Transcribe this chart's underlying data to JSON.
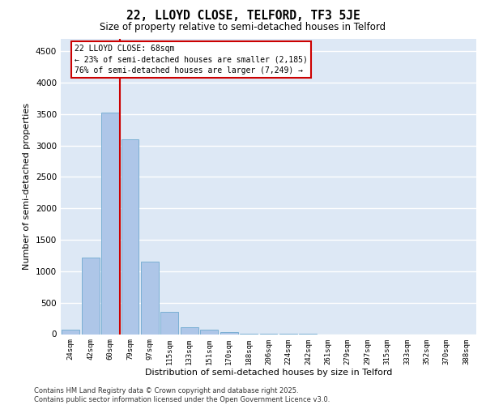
{
  "title1": "22, LLOYD CLOSE, TELFORD, TF3 5JE",
  "title2": "Size of property relative to semi-detached houses in Telford",
  "xlabel": "Distribution of semi-detached houses by size in Telford",
  "ylabel": "Number of semi-detached properties",
  "categories": [
    "24sqm",
    "42sqm",
    "60sqm",
    "79sqm",
    "97sqm",
    "115sqm",
    "133sqm",
    "151sqm",
    "170sqm",
    "188sqm",
    "206sqm",
    "224sqm",
    "242sqm",
    "261sqm",
    "279sqm",
    "297sqm",
    "315sqm",
    "333sqm",
    "352sqm",
    "370sqm",
    "388sqm"
  ],
  "values": [
    75,
    1220,
    3520,
    3100,
    1150,
    355,
    105,
    65,
    30,
    10,
    5,
    2,
    1,
    0,
    0,
    0,
    0,
    0,
    0,
    0,
    0
  ],
  "bar_color": "#aec6e8",
  "bar_edgecolor": "#7aafd4",
  "annotation_title": "22 LLOYD CLOSE: 68sqm",
  "annotation_line1": "← 23% of semi-detached houses are smaller (2,185)",
  "annotation_line2": "76% of semi-detached houses are larger (7,249) →",
  "annotation_box_color": "#cc0000",
  "ylim": [
    0,
    4700
  ],
  "yticks": [
    0,
    500,
    1000,
    1500,
    2000,
    2500,
    3000,
    3500,
    4000,
    4500
  ],
  "bg_color": "#dde8f5",
  "footer_line1": "Contains HM Land Registry data © Crown copyright and database right 2025.",
  "footer_line2": "Contains public sector information licensed under the Open Government Licence v3.0."
}
